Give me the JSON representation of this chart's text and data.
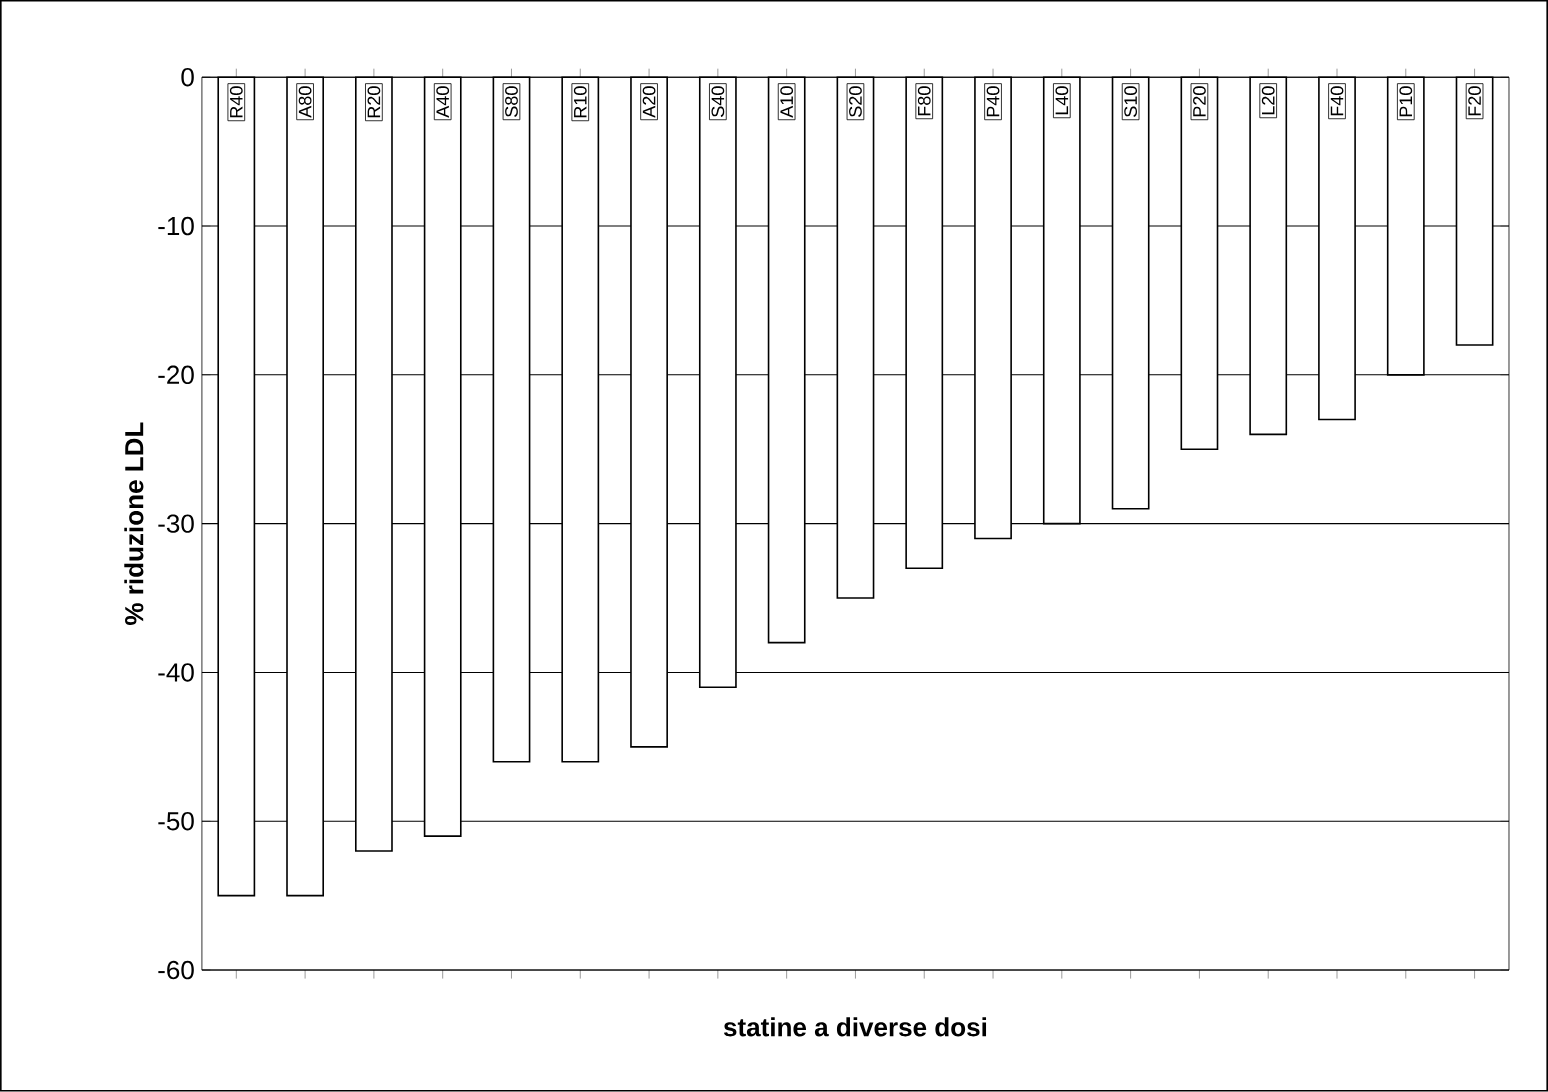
{
  "chart_data": {
    "type": "bar",
    "xlabel": "statine a diverse dosi",
    "ylabel": "% riduzione LDL",
    "categories": [
      "R40",
      "A80",
      "R20",
      "A40",
      "S80",
      "R10",
      "A20",
      "S40",
      "A10",
      "S20",
      "F80",
      "P40",
      "L40",
      "S10",
      "P20",
      "L20",
      "F40",
      "P10",
      "F20"
    ],
    "values": [
      -55,
      -55,
      -52,
      -51,
      -46,
      -46,
      -45,
      -41,
      -38,
      -35,
      -33,
      -31,
      -30,
      -29,
      -25,
      -24,
      -23,
      -20,
      -18
    ],
    "color": "#ffffff",
    "ylim": [
      -60,
      0
    ],
    "yticks": [
      0,
      -10,
      -20,
      -30,
      -40,
      -50,
      -60
    ],
    "grid": "y"
  }
}
